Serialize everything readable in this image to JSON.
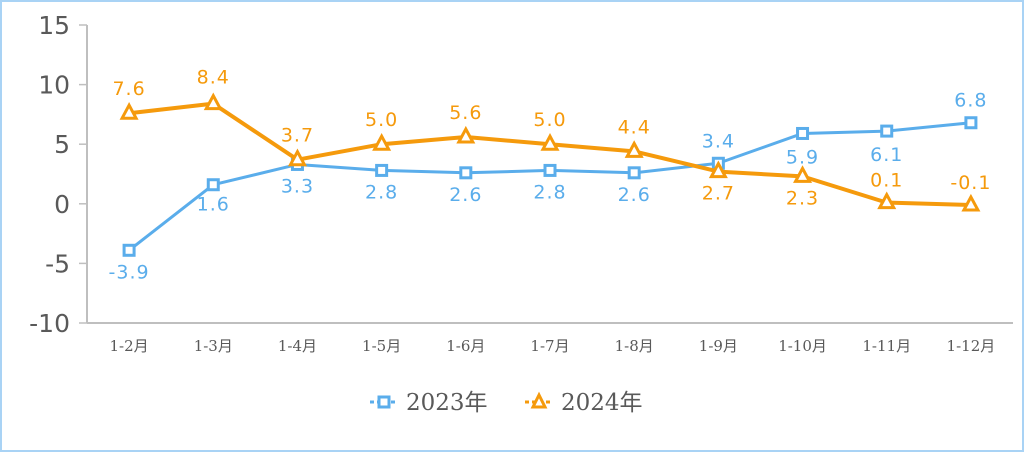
{
  "chart_data": {
    "type": "line",
    "title": "",
    "xlabel": "",
    "ylabel": "",
    "categories": [
      "1-2月",
      "1-3月",
      "1-4月",
      "1-5月",
      "1-6月",
      "1-7月",
      "1-8月",
      "1-9月",
      "1-10月",
      "1-11月",
      "1-12月"
    ],
    "series": [
      {
        "name": "2023年",
        "color": "#5aadeb",
        "marker": "square",
        "values": [
          -3.9,
          1.6,
          3.3,
          2.8,
          2.6,
          2.8,
          2.6,
          3.4,
          5.9,
          6.1,
          6.8
        ],
        "labels": [
          "-3.9",
          "1.6",
          "3.3",
          "2.8",
          "2.6",
          "2.8",
          "2.6",
          "3.4",
          "5.9",
          "6.1",
          "6.8"
        ]
      },
      {
        "name": "2024年",
        "color": "#f59a0c",
        "marker": "triangle",
        "values": [
          7.6,
          8.4,
          3.7,
          5.0,
          5.6,
          5.0,
          4.4,
          2.7,
          2.3,
          0.1,
          -0.1
        ],
        "labels": [
          "7.6",
          "8.4",
          "3.7",
          "5.0",
          "5.6",
          "5.0",
          "4.4",
          "2.7",
          "2.3",
          "0.1",
          "-0.1"
        ]
      }
    ],
    "ylim": [
      -10,
      15
    ],
    "yticks": [
      15,
      10,
      5,
      0,
      -5,
      -10
    ],
    "ytick_labels": [
      "15",
      "10",
      "5",
      "0",
      "-5",
      "-10"
    ],
    "grid": false,
    "legend_position": "bottom"
  },
  "legend": {
    "items": [
      {
        "label": "2023年"
      },
      {
        "label": "2024年"
      }
    ]
  }
}
